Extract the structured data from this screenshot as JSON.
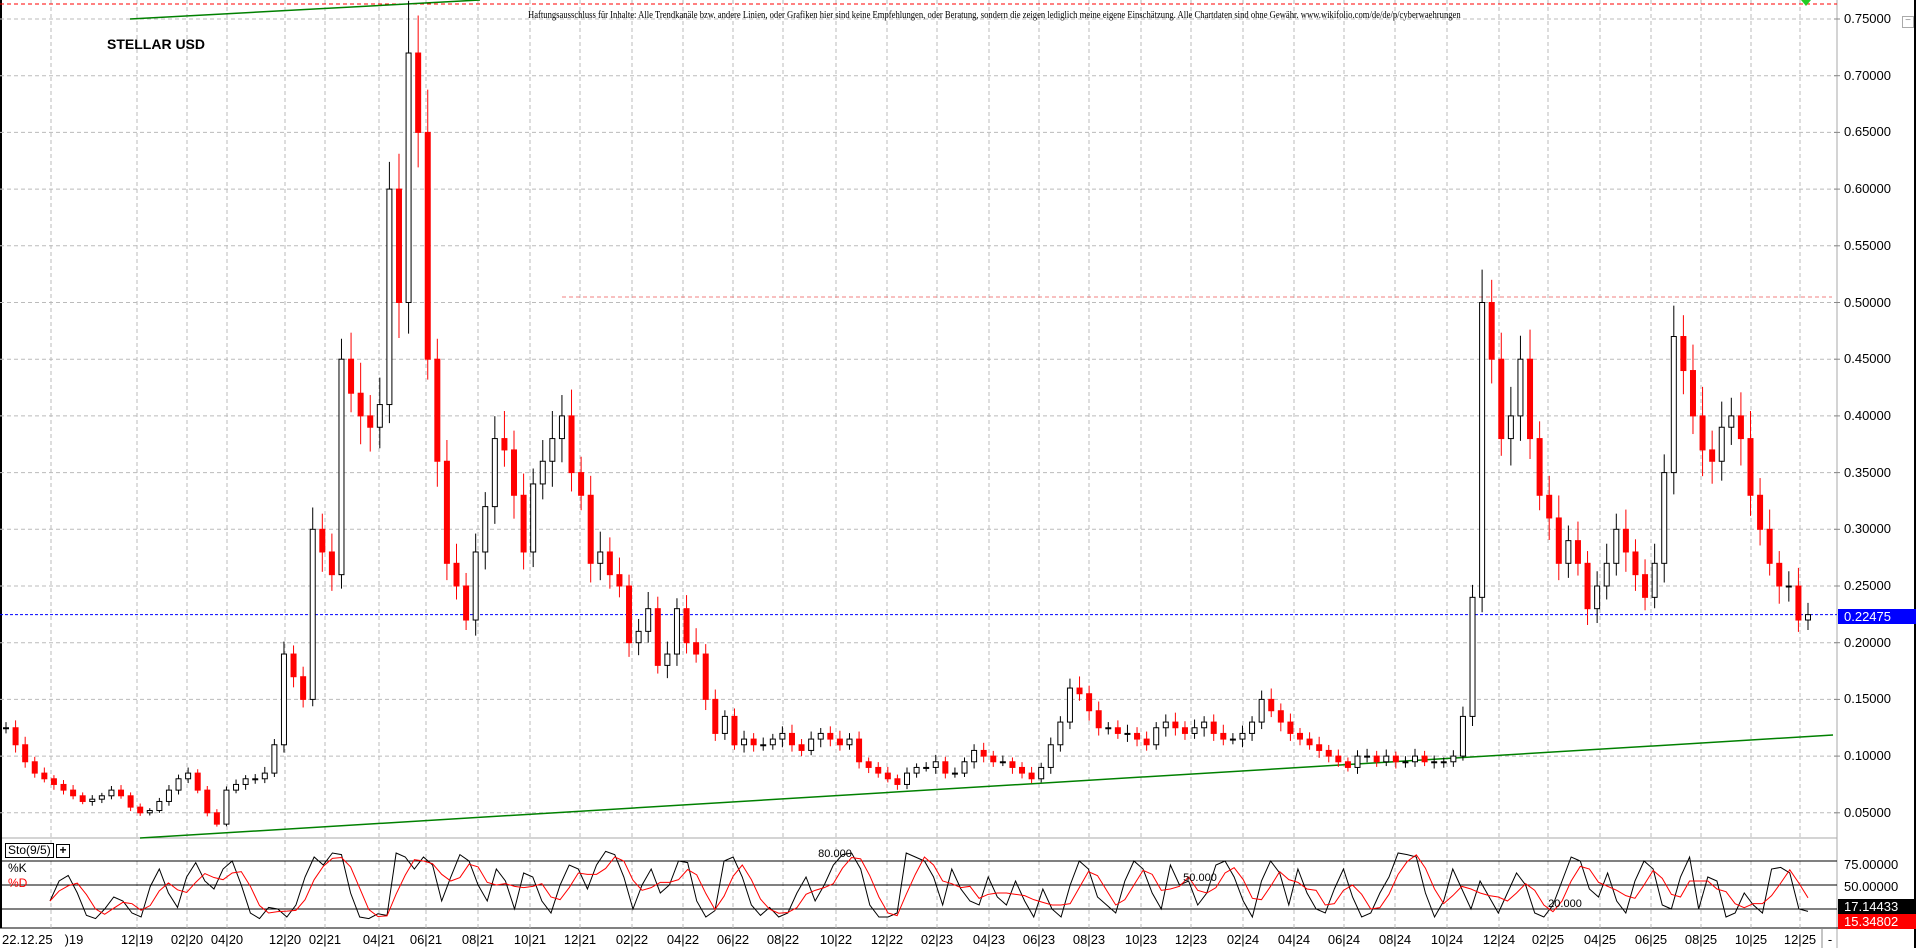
{
  "title": "STELLAR USD",
  "disclaimer": "Haftungsausschluss für Inhalte: Alle Trendkanäle bzw. andere Linien, oder Grafiken hier sind keine Empfehlungen, oder Beratung, sondern die zeigen lediglich meine eigene Einschätzung. Alle Chartdaten sind ohne Gewähr.  www.wikifolio.com/de/de/p/cyberwaehrungen",
  "colors": {
    "up_candle": "#ffffff",
    "down_candle": "#ff0000",
    "trendline": "#008000",
    "current_price_line": "#0000ff",
    "resistance_line": "#f08080",
    "top_line": "#ff0000",
    "grid": "#bbbbbb"
  },
  "chart_data": {
    "type": "candlestick",
    "title": "STELLAR USD",
    "ylim": [
      0.02,
      0.76
    ],
    "y_ticks": [
      "0.75000",
      "0.70000",
      "0.65000",
      "0.60000",
      "0.55000",
      "0.50000",
      "0.45000",
      "0.40000",
      "0.35000",
      "0.30000",
      "0.25000",
      "0.20000",
      "0.15000",
      "0.10000",
      "0.05000"
    ],
    "current_price": "0.22475",
    "grid": true,
    "close": [
      0.125,
      0.11,
      0.095,
      0.085,
      0.08,
      0.075,
      0.07,
      0.065,
      0.06,
      0.062,
      0.065,
      0.07,
      0.065,
      0.055,
      0.05,
      0.052,
      0.06,
      0.07,
      0.08,
      0.085,
      0.07,
      0.05,
      0.04,
      0.07,
      0.075,
      0.08,
      0.08,
      0.085,
      0.11,
      0.19,
      0.17,
      0.15,
      0.3,
      0.28,
      0.26,
      0.45,
      0.42,
      0.4,
      0.39,
      0.41,
      0.6,
      0.5,
      0.72,
      0.65,
      0.45,
      0.36,
      0.27,
      0.25,
      0.22,
      0.28,
      0.32,
      0.38,
      0.37,
      0.33,
      0.28,
      0.34,
      0.36,
      0.38,
      0.4,
      0.35,
      0.33,
      0.27,
      0.28,
      0.26,
      0.25,
      0.2,
      0.21,
      0.23,
      0.18,
      0.19,
      0.23,
      0.2,
      0.19,
      0.15,
      0.12,
      0.135,
      0.11,
      0.115,
      0.11,
      0.11,
      0.115,
      0.12,
      0.11,
      0.105,
      0.115,
      0.12,
      0.115,
      0.11,
      0.115,
      0.095,
      0.09,
      0.085,
      0.08,
      0.075,
      0.085,
      0.09,
      0.09,
      0.095,
      0.085,
      0.085,
      0.095,
      0.105,
      0.1,
      0.095,
      0.095,
      0.09,
      0.085,
      0.08,
      0.09,
      0.11,
      0.13,
      0.16,
      0.155,
      0.14,
      0.125,
      0.125,
      0.12,
      0.12,
      0.115,
      0.11,
      0.125,
      0.13,
      0.125,
      0.12,
      0.125,
      0.13,
      0.12,
      0.115,
      0.115,
      0.12,
      0.13,
      0.15,
      0.14,
      0.13,
      0.12,
      0.115,
      0.11,
      0.105,
      0.1,
      0.095,
      0.09,
      0.1,
      0.1,
      0.095,
      0.1,
      0.095,
      0.095,
      0.1,
      0.095,
      0.095,
      0.095,
      0.1,
      0.135,
      0.24,
      0.5,
      0.45,
      0.38,
      0.4,
      0.45,
      0.38,
      0.33,
      0.31,
      0.27,
      0.29,
      0.27,
      0.23,
      0.25,
      0.27,
      0.3,
      0.28,
      0.26,
      0.24,
      0.27,
      0.35,
      0.47,
      0.44,
      0.4,
      0.37,
      0.36,
      0.39,
      0.4,
      0.38,
      0.33,
      0.3,
      0.27,
      0.25,
      0.25,
      0.22,
      0.22475
    ],
    "x_ticks": [
      ")19",
      "12|19",
      "02|20",
      "04|20",
      "12|20",
      "02|21",
      "04|21",
      "06|21",
      "08|21",
      "10|21",
      "12|21",
      "02|22",
      "04|22",
      "06|22",
      "08|22",
      "10|22",
      "12|22",
      "02|23",
      "04|23",
      "06|23",
      "08|23",
      "10|23",
      "12|23",
      "02|24",
      "04|24",
      "06|24",
      "08|24",
      "10|24",
      "12|24",
      "02|25",
      "04|25",
      "06|25",
      "08|25",
      "10|25",
      "12|25"
    ],
    "date_stamp": "22.12.25",
    "axis_end": "-"
  },
  "stochastic": {
    "name": "Sto(9/5)",
    "plus": "+",
    "k_label": "%K",
    "d_label": "%D",
    "levels": [
      80,
      50,
      20
    ],
    "level_labels": [
      "80.000",
      "50.000",
      "20.000"
    ],
    "y_ticks": [
      "75.00000",
      "50.00000"
    ],
    "k_value": "17.14433",
    "d_value": "15.34802",
    "k": [
      30,
      55,
      62,
      40,
      12,
      8,
      20,
      35,
      30,
      15,
      10,
      48,
      70,
      40,
      22,
      60,
      78,
      55,
      45,
      70,
      80,
      50,
      15,
      8,
      22,
      20,
      10,
      25,
      60,
      85,
      75,
      90,
      88,
      40,
      10,
      8,
      14,
      12,
      90,
      85,
      70,
      85,
      75,
      30,
      60,
      88,
      80,
      50,
      30,
      70,
      55,
      20,
      65,
      60,
      30,
      15,
      50,
      75,
      70,
      45,
      75,
      92,
      88,
      60,
      20,
      50,
      70,
      40,
      50,
      80,
      78,
      30,
      10,
      18,
      80,
      85,
      60,
      25,
      12,
      22,
      10,
      15,
      40,
      60,
      30,
      50,
      75,
      88,
      90,
      70,
      25,
      10,
      10,
      15,
      90,
      85,
      80,
      60,
      25,
      70,
      45,
      30,
      25,
      60,
      35,
      25,
      55,
      30,
      10,
      45,
      20,
      10,
      50,
      80,
      70,
      35,
      25,
      15,
      55,
      80,
      70,
      40,
      20,
      75,
      50,
      55,
      25,
      40,
      75,
      80,
      60,
      30,
      10,
      55,
      80,
      65,
      25,
      70,
      40,
      20,
      15,
      45,
      70,
      35,
      10,
      15,
      40,
      60,
      90,
      88,
      85,
      40,
      10,
      30,
      70,
      45,
      20,
      55,
      35,
      15,
      40,
      65,
      50,
      15,
      10,
      25,
      55,
      85,
      80,
      45,
      35,
      65,
      30,
      15,
      55,
      80,
      70,
      25,
      20,
      60,
      85,
      20,
      60,
      55,
      10,
      15,
      40,
      25,
      15,
      70,
      72,
      65,
      20,
      17
    ]
  },
  "collapse_button": "−"
}
